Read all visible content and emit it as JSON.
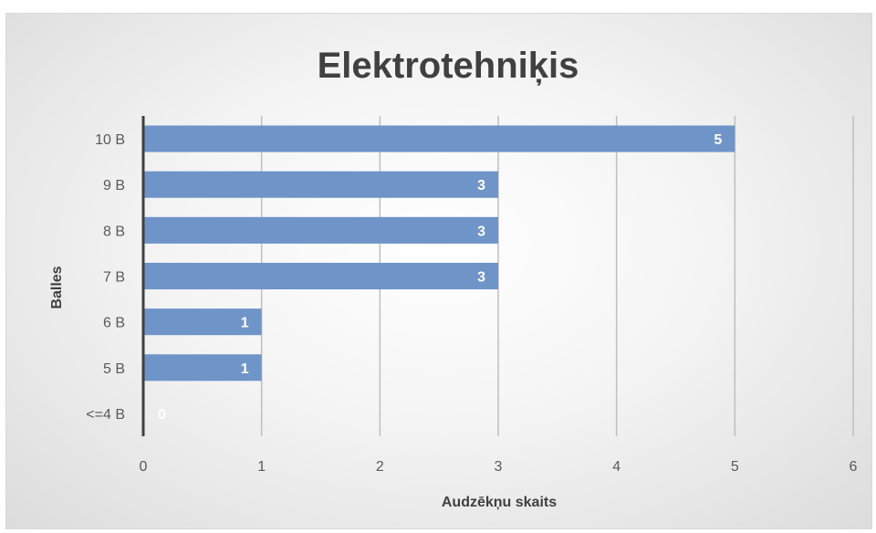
{
  "chart_data": {
    "type": "bar",
    "orientation": "horizontal",
    "title": "Elektrotehniķis",
    "xlabel": "Audzēkņu skaits",
    "ylabel": "Balles",
    "categories": [
      "10 B",
      "9 B",
      "8 B",
      "7 B",
      "6 B",
      "5 B",
      "<=4 B"
    ],
    "values": [
      5,
      3,
      3,
      3,
      1,
      1,
      0
    ],
    "xlim": [
      0,
      6
    ],
    "xticks": [
      0,
      1,
      2,
      3,
      4,
      5,
      6
    ],
    "grid": true,
    "data_labels": true,
    "bar_color": "#6f94c8"
  }
}
